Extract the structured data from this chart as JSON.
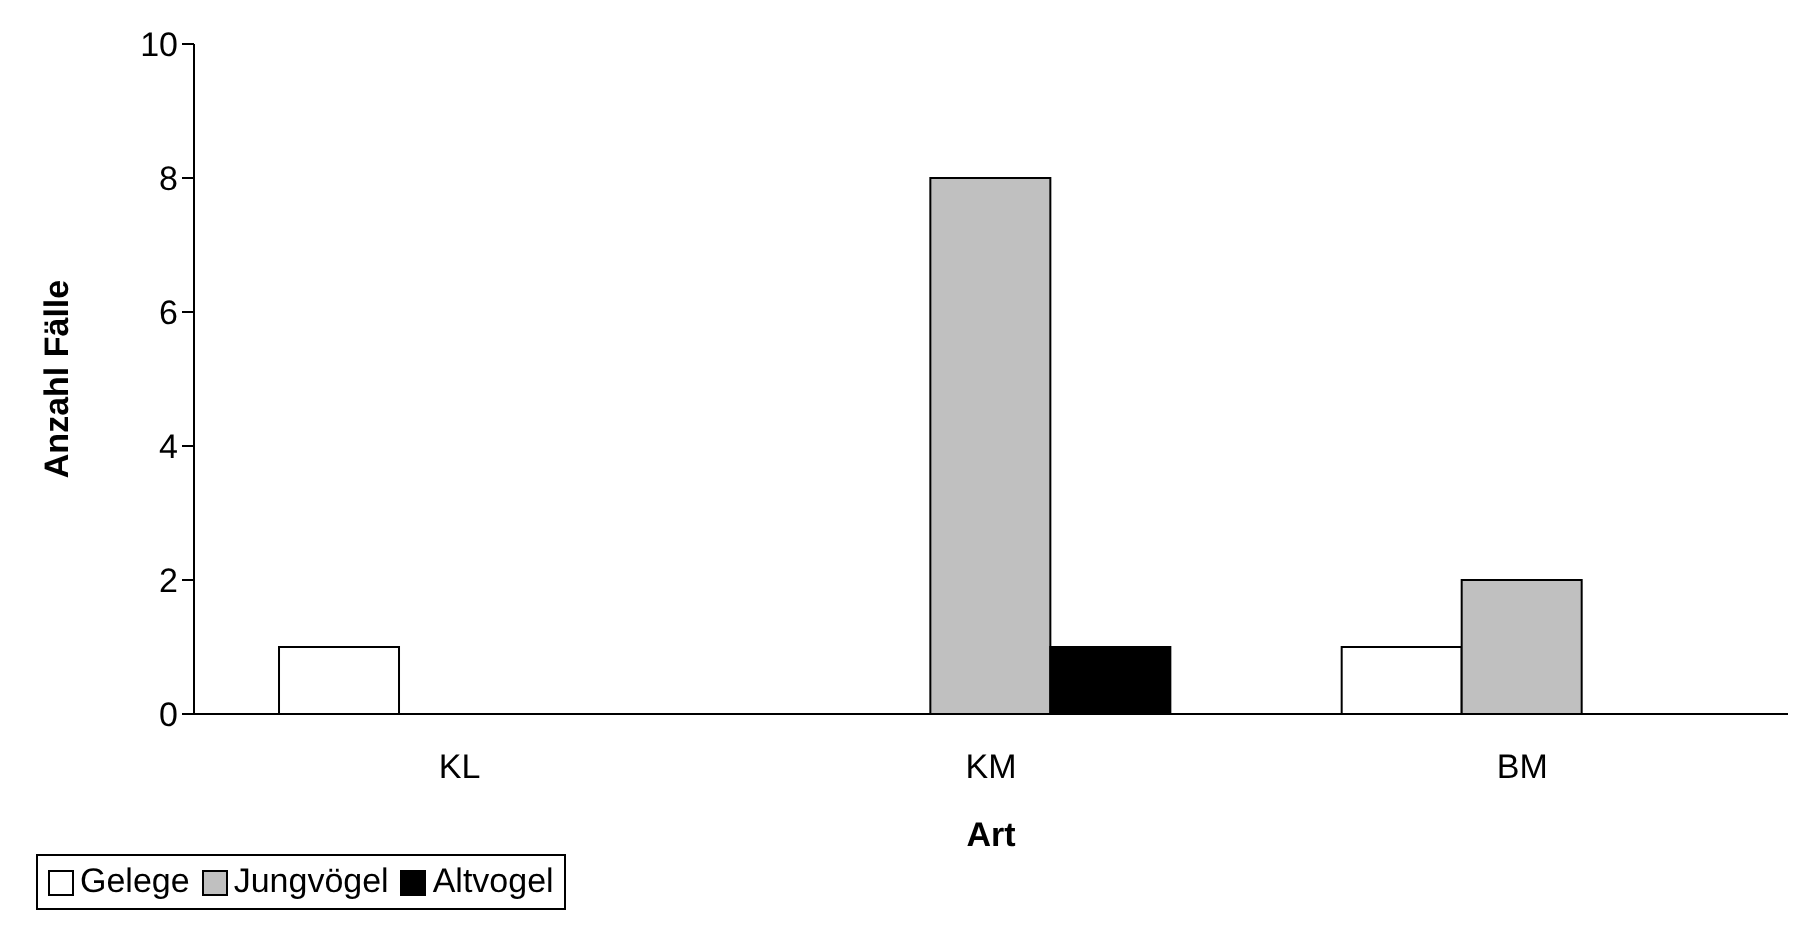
{
  "chart_data": {
    "type": "bar",
    "xlabel": "Art",
    "ylabel": "Anzahl Fälle",
    "categories": [
      "KL",
      "KM",
      "BM"
    ],
    "series": [
      {
        "name": "Gelege",
        "color": "#ffffff",
        "values": [
          1,
          0,
          1
        ]
      },
      {
        "name": "Jungvögel",
        "color": "#c0c0c0",
        "values": [
          0,
          8,
          2
        ]
      },
      {
        "name": "Altvogel",
        "color": "#000000",
        "values": [
          0,
          1,
          0
        ]
      }
    ],
    "ylim": [
      0,
      10
    ],
    "yticks": [
      0,
      2,
      4,
      6,
      8,
      10
    ],
    "grid": false,
    "legend": "bottom"
  }
}
